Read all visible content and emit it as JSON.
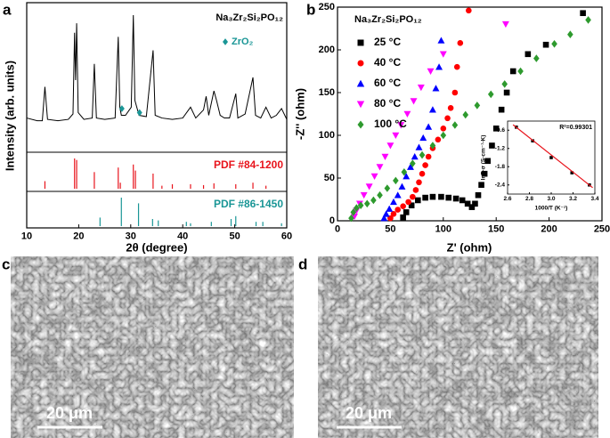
{
  "chart_data": [
    {
      "type": "line",
      "panel_label": "a",
      "title": "Na₃Zr₂Si₂PO₁₂",
      "xlabel": "2θ (degree)",
      "ylabel": "Intensity (arb. units)",
      "xlim": [
        10,
        60
      ],
      "xticks": [
        10,
        20,
        30,
        40,
        50,
        60
      ],
      "ylim": [
        0,
        100
      ],
      "pattern": {
        "color": "#000000",
        "x": [
          10,
          12,
          13,
          13.5,
          14,
          16,
          18,
          18.9,
          19.2,
          19.4,
          19.6,
          19.9,
          21,
          22.6,
          23,
          23.4,
          25,
          27,
          27.6,
          27.9,
          28.2,
          29,
          30.1,
          30.5,
          30.8,
          31.6,
          33,
          34.3,
          34.7,
          36,
          38,
          40,
          41.5,
          42.5,
          44,
          44.5,
          45,
          46,
          46.5,
          47.2,
          48,
          49,
          50.2,
          50.6,
          52,
          53.5,
          54,
          55,
          56,
          57,
          58,
          59,
          60
        ],
        "values": [
          22,
          20,
          20,
          45,
          21,
          20,
          21,
          25,
          85,
          50,
          92,
          26,
          21,
          22,
          62,
          22,
          21,
          22,
          82,
          30,
          24,
          24,
          30,
          98,
          35,
          24,
          23,
          72,
          24,
          22,
          21,
          22,
          30,
          22,
          28,
          38,
          24,
          42,
          35,
          24,
          22,
          22,
          40,
          22,
          25,
          52,
          24,
          22,
          30,
          22,
          24,
          29,
          21
        ]
      },
      "markers": {
        "name": "ZrO₂",
        "color": "#1a9696",
        "x": [
          28.3,
          31.7
        ],
        "values": [
          25,
          22
        ]
      },
      "references": [
        {
          "name": "PDF #84-1200",
          "color": "#e8141c",
          "x": [
            13.5,
            19.2,
            19.6,
            23,
            27.6,
            28,
            30.5,
            30.9,
            34.3,
            36,
            38,
            41.5,
            44,
            46,
            50.2,
            53.5,
            56
          ],
          "values": [
            25,
            100,
            95,
            55,
            70,
            20,
            80,
            60,
            50,
            10,
            15,
            15,
            12,
            18,
            15,
            20,
            10
          ]
        },
        {
          "name": "PDF #86-1450",
          "color": "#1a9696",
          "x": [
            24.1,
            28.2,
            31.5,
            34.2,
            35.3,
            40.7,
            41.5,
            45.5,
            49.3,
            50.2,
            54.1,
            55.4,
            59
          ],
          "values": [
            30,
            100,
            80,
            25,
            20,
            15,
            10,
            15,
            25,
            35,
            15,
            15,
            10
          ]
        }
      ]
    },
    {
      "type": "scatter",
      "panel_label": "b",
      "title": "Na₃Zr₂Si₂PO₁₂",
      "xlabel": "Z' (ohm)",
      "ylabel": "-Z'' (ohm)",
      "xlim": [
        0,
        250
      ],
      "xticks": [
        0,
        50,
        100,
        150,
        200,
        250
      ],
      "ylim": [
        0,
        250
      ],
      "yticks": [
        0,
        50,
        100,
        150,
        200,
        250
      ],
      "series": [
        {
          "name": "25 °C",
          "color": "#000000",
          "marker": "square",
          "x": [
            62,
            65,
            70,
            76,
            83,
            90,
            98,
            105,
            112,
            118,
            123,
            127,
            130,
            133,
            136,
            139,
            142,
            146,
            150,
            155,
            160,
            166,
            180,
            197,
            232
          ],
          "values": [
            4,
            10,
            18,
            24,
            27,
            28,
            28,
            27,
            26,
            24,
            20,
            16,
            20,
            30,
            42,
            55,
            70,
            88,
            108,
            130,
            150,
            175,
            195,
            206,
            243
          ]
        },
        {
          "name": "40 °C",
          "color": "#ff0000",
          "marker": "circle",
          "x": [
            50,
            53,
            57,
            62,
            67,
            71,
            74,
            77,
            80,
            83,
            86,
            90,
            95,
            100,
            104,
            107,
            111,
            113,
            116,
            124
          ],
          "values": [
            3,
            8,
            13,
            17,
            22,
            28,
            36,
            45,
            55,
            65,
            75,
            85,
            95,
            108,
            120,
            132,
            150,
            180,
            208,
            246
          ]
        },
        {
          "name": "60 °C",
          "color": "#0000ff",
          "marker": "triangle-up",
          "x": [
            44,
            46,
            49,
            53,
            57,
            61,
            65,
            69,
            73,
            77,
            81,
            86,
            90,
            93,
            96,
            98
          ],
          "values": [
            3,
            8,
            14,
            22,
            30,
            40,
            52,
            63,
            75,
            86,
            97,
            110,
            130,
            155,
            180,
            211
          ]
        },
        {
          "name": "80 °C",
          "color": "#ff00ff",
          "marker": "triangle-down",
          "x": [
            16,
            18,
            21,
            25,
            30,
            35,
            40,
            45,
            50,
            55,
            60,
            66,
            72,
            79,
            88,
            100,
            159
          ],
          "values": [
            5,
            12,
            20,
            30,
            40,
            52,
            63,
            75,
            88,
            100,
            112,
            125,
            140,
            156,
            175,
            195,
            230
          ]
        },
        {
          "name": "100 °C",
          "color": "#2e9a2e",
          "marker": "diamond",
          "x": [
            13,
            15,
            18,
            22,
            28,
            34,
            40,
            47,
            55,
            63,
            71,
            80,
            90,
            100,
            111,
            121,
            132,
            145,
            158,
            173,
            188,
            205,
            220,
            237
          ],
          "values": [
            3,
            10,
            15,
            18,
            20,
            24,
            30,
            38,
            47,
            57,
            67,
            77,
            88,
            100,
            112,
            124,
            135,
            148,
            160,
            175,
            190,
            207,
            218,
            235
          ]
        }
      ]
    },
    {
      "type": "scatter",
      "xlabel": "1000/T (K⁻¹)",
      "ylabel": "lnT·σ (S·cm⁻¹·K)",
      "annotation": "R²=0.99301",
      "xlim": [
        2.6,
        3.4
      ],
      "xticks": [
        2.6,
        2.8,
        {
          "value": 3,
          "label": "3.0"
        },
        3.2,
        3.4
      ],
      "ylim": [
        -2.7,
        -0.3
      ],
      "yticks": [
        -2.4,
        -1.8,
        -1.2,
        -0.6
      ],
      "series": [
        {
          "color": "#000000",
          "marker": "square",
          "x": [
            2.68,
            2.83,
            3.0,
            3.19,
            3.35
          ],
          "values": [
            -0.5,
            -0.95,
            -1.5,
            -2.0,
            -2.4
          ]
        }
      ],
      "fit": {
        "color": "#e8141c",
        "x": [
          2.65,
          3.38
        ],
        "values": [
          -0.42,
          -2.49
        ]
      }
    }
  ],
  "images": [
    {
      "label": "c",
      "scale_bar": "20 μm"
    },
    {
      "label": "d",
      "scale_bar": "20 μm"
    }
  ]
}
